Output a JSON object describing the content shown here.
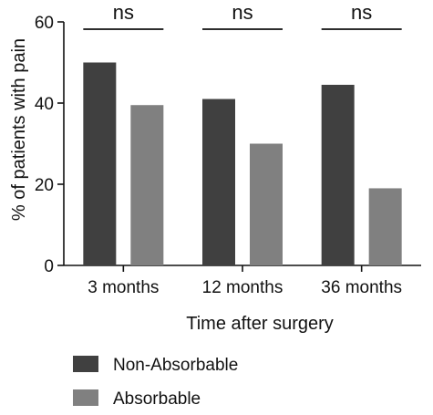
{
  "chart_data": {
    "type": "bar",
    "title": "",
    "xlabel": "Time after surgery",
    "ylabel": "% of patients with pain",
    "ylim": [
      0,
      60
    ],
    "yticks": [
      0,
      20,
      40,
      60
    ],
    "categories": [
      "3 months",
      "12 months",
      "36 months"
    ],
    "series": [
      {
        "name": "Non-Absorbable",
        "color": "#404040",
        "values": [
          50,
          41,
          44.5
        ]
      },
      {
        "name": "Absorbable",
        "color": "#808080",
        "values": [
          39.5,
          30,
          19
        ]
      }
    ],
    "annotations": [
      "ns",
      "ns",
      "ns"
    ],
    "legend": "bottom-left",
    "grid": false
  }
}
